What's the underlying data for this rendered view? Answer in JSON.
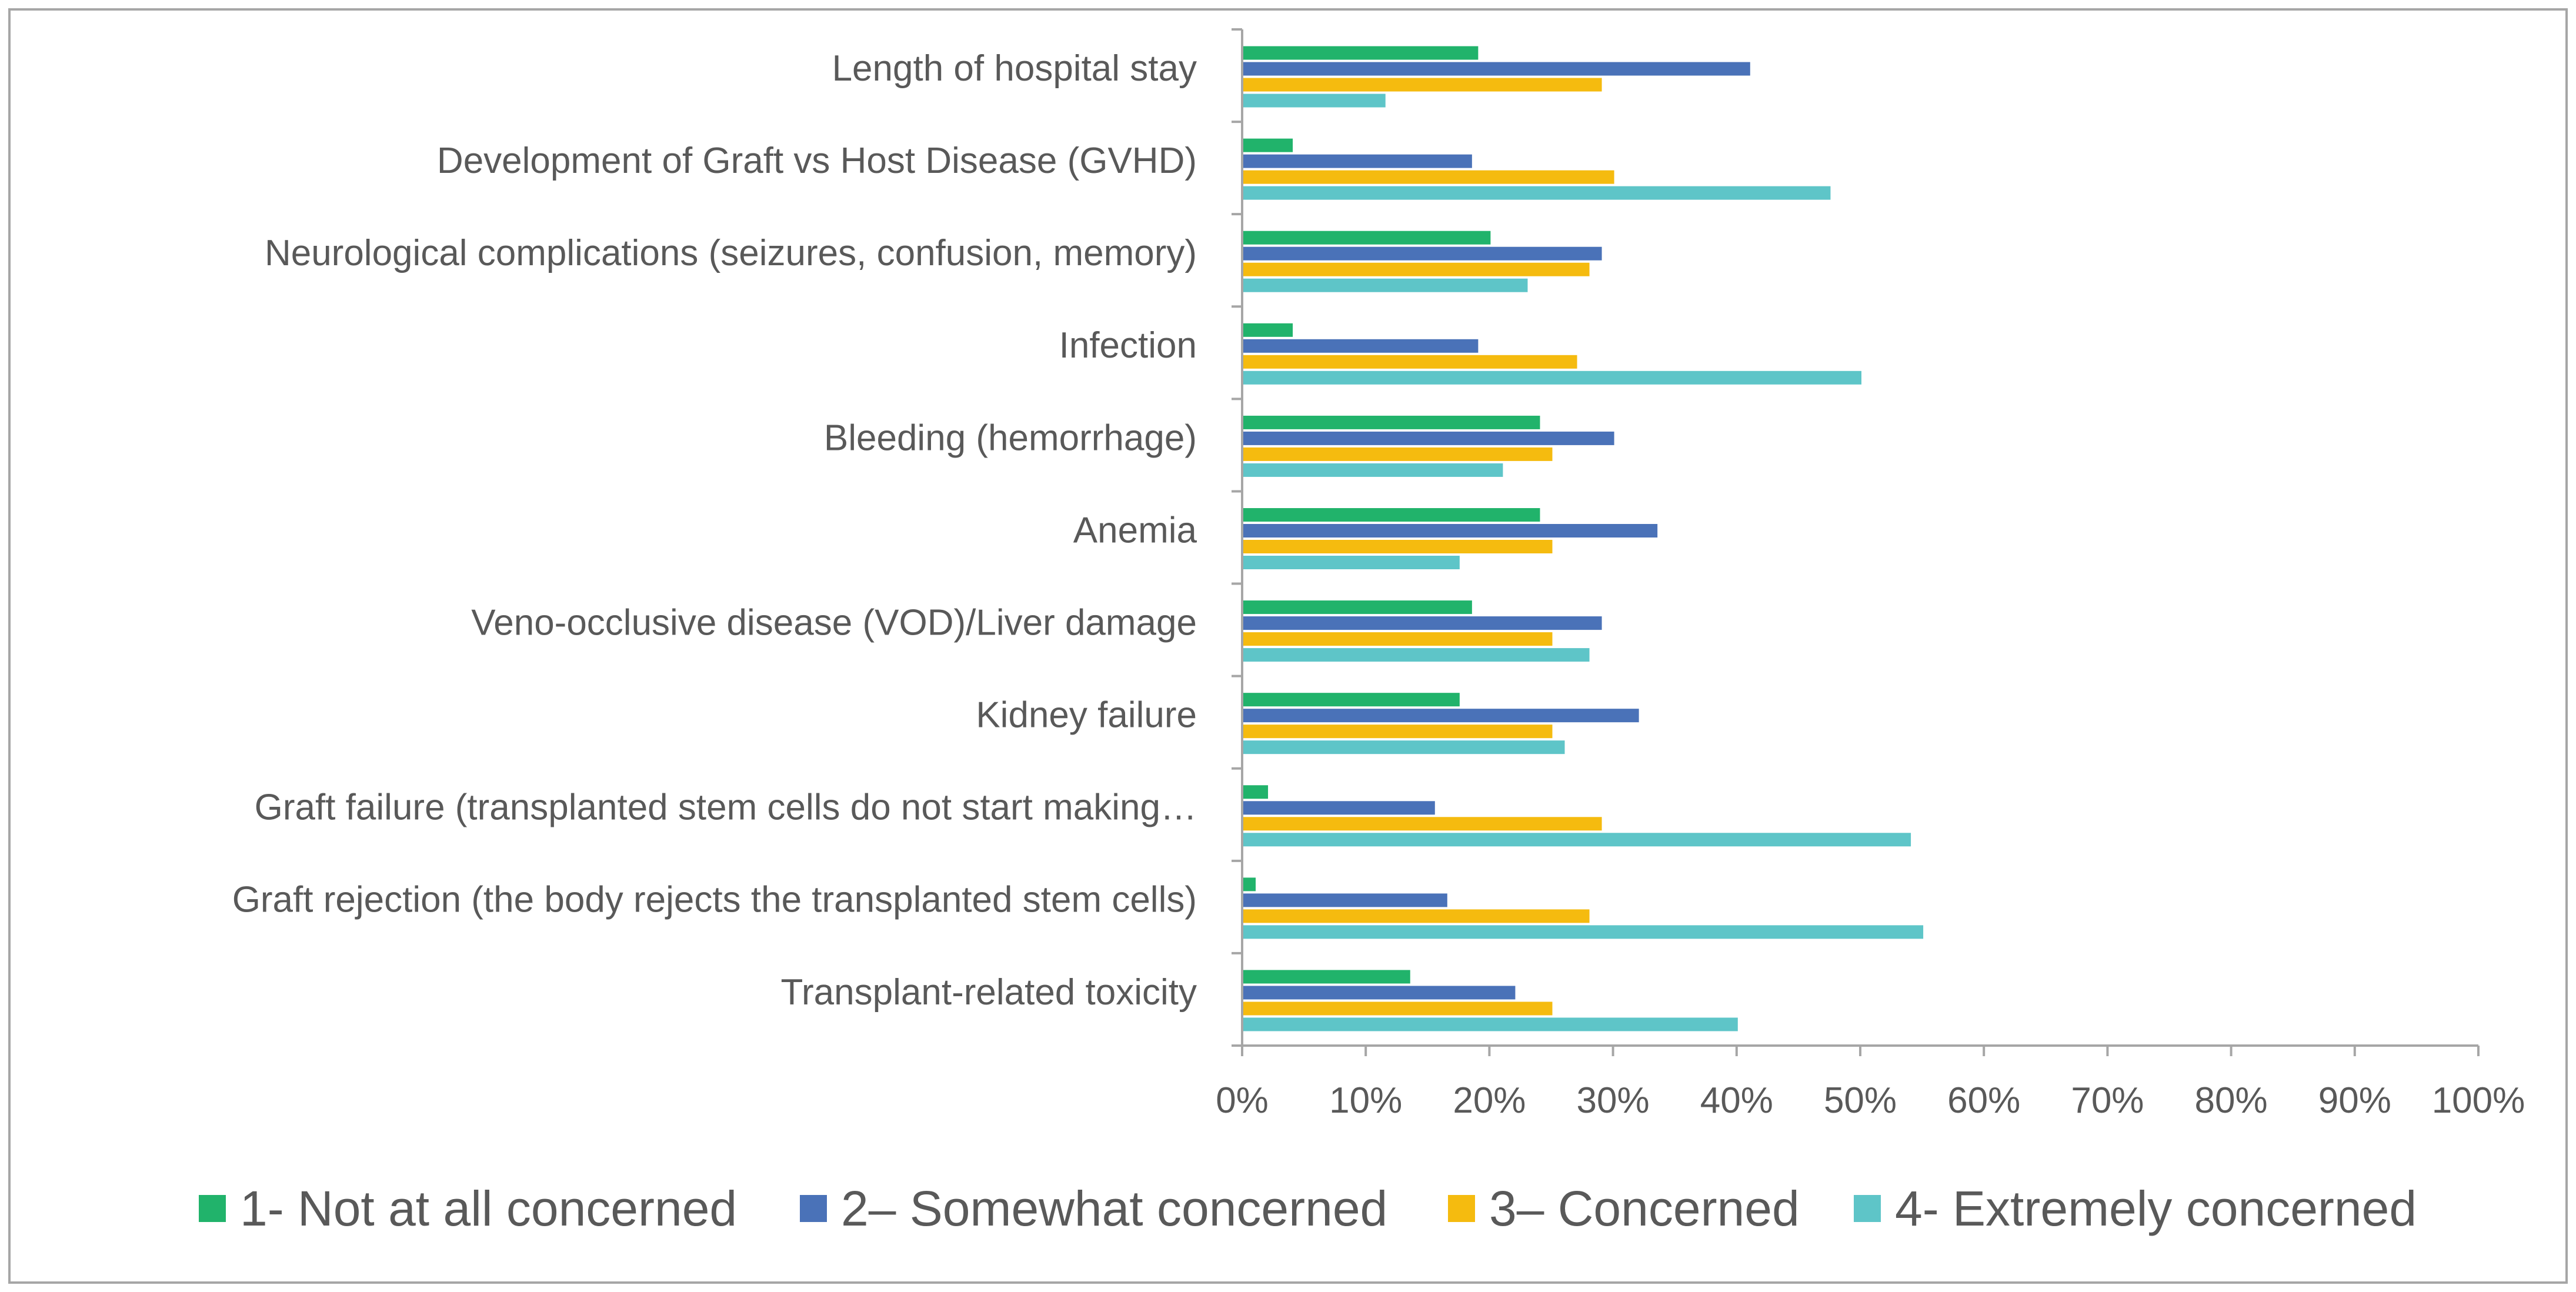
{
  "chart_data": {
    "type": "bar",
    "orientation": "horizontal",
    "title": "",
    "xlabel": "",
    "ylabel": "",
    "xlim": [
      0,
      100
    ],
    "grid": false,
    "legend_position": "bottom",
    "tick_labels": [
      "0%",
      "10%",
      "20%",
      "30%",
      "40%",
      "50%",
      "60%",
      "70%",
      "80%",
      "90%",
      "100%"
    ],
    "categories": [
      "Length of hospital stay",
      "Development of Graft vs Host Disease (GVHD)",
      "Neurological complications (seizures, confusion, memory)",
      "Infection",
      "Bleeding (hemorrhage)",
      "Anemia",
      "Veno-occlusive disease (VOD)/Liver damage",
      "Kidney failure",
      "Graft failure (transplanted stem cells do not start making…",
      "Graft rejection (the body rejects the transplanted stem cells)",
      "Transplant-related toxicity"
    ],
    "series": [
      {
        "name": "1- Not at all concerned",
        "color": "#21b36b",
        "values": [
          19,
          4,
          20,
          4,
          24,
          24,
          18.5,
          17.5,
          2,
          1,
          13.5
        ]
      },
      {
        "name": "2– Somewhat concerned",
        "color": "#4a72b8",
        "values": [
          41,
          18.5,
          29,
          19,
          30,
          33.5,
          29,
          32,
          15.5,
          16.5,
          22
        ]
      },
      {
        "name": "3– Concerned",
        "color": "#f5bb0f",
        "values": [
          29,
          30,
          28,
          27,
          25,
          25,
          25,
          25,
          29,
          28,
          25
        ]
      },
      {
        "name": "4- Extremely concerned",
        "color": "#5ec5c8",
        "values": [
          11.5,
          47.5,
          23,
          50,
          21,
          17.5,
          28,
          26,
          54,
          55,
          40
        ]
      }
    ]
  }
}
